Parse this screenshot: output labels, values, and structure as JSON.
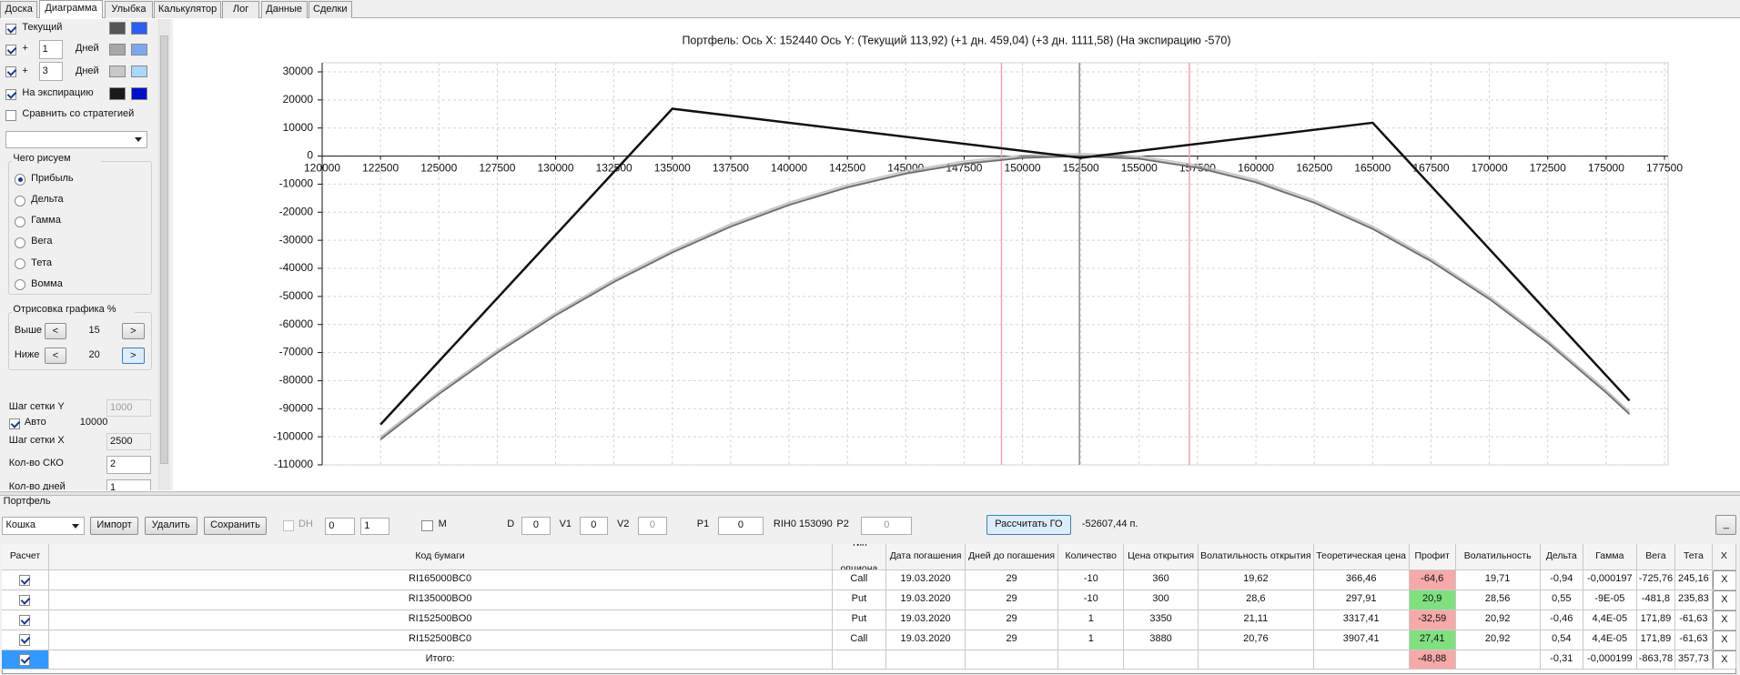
{
  "tabs": [
    "Доска",
    "Диаграмма",
    "Улыбка",
    "Калькулятор",
    "Лог",
    "Данные",
    "Сделки"
  ],
  "active_tab": 1,
  "left_panel": {
    "rows": [
      {
        "label": "Текущий",
        "checked": true,
        "colors": [
          "#555555",
          "#2b5ff0"
        ]
      },
      {
        "prefix": "+",
        "days": "1",
        "unit": "Дней",
        "checked": true,
        "colors": [
          "#a8a8a8",
          "#7ea8ee"
        ]
      },
      {
        "prefix": "+",
        "days": "3",
        "unit": "Дней",
        "checked": true,
        "colors": [
          "#c8c8c8",
          "#a8d8fa"
        ]
      },
      {
        "label": "На экспирацию",
        "checked": true,
        "colors": [
          "#1a1a1a",
          "#0010c8"
        ]
      }
    ],
    "compare": {
      "label": "Сравнить со стратегией",
      "checked": false
    },
    "draw_group": {
      "title": "Чего рисуем",
      "options": [
        "Прибыль",
        "Дельта",
        "Гамма",
        "Вега",
        "Тета",
        "Вомма"
      ],
      "selected": 0
    },
    "range_group": {
      "title": "Отрисовка графика %",
      "prev": "<",
      "next": ">",
      "rows": [
        {
          "label": "Выше",
          "value": "15"
        },
        {
          "label": "Ниже",
          "value": "20"
        }
      ]
    },
    "fields": [
      {
        "label": "Шаг сетки Y",
        "value": "1000"
      },
      {
        "label": "Шаг сетки X",
        "value": "2500"
      },
      {
        "label": "Кол-во СКО",
        "value": "2"
      },
      {
        "label": "Кол-во дней",
        "value": "1"
      }
    ],
    "auto": {
      "label": "Авто",
      "value": "10000",
      "checked": true
    }
  },
  "chart": {
    "type": "line",
    "title": "Портфель:  Ось X:  152440 Ось Y:  (Текущий 113,92)  (+1 дн. 459,04)  (+3 дн. 1111,58)  (На экспирацию -570)",
    "xlim": [
      120000,
      177500
    ],
    "ylim": [
      -110000,
      30000
    ],
    "xticks": [
      120000,
      122500,
      125000,
      127500,
      130000,
      132500,
      135000,
      137500,
      140000,
      142500,
      145000,
      147500,
      150000,
      152500,
      155000,
      157500,
      160000,
      162500,
      165000,
      167500,
      170000,
      172500,
      175000,
      177500
    ],
    "yticks": [
      30000,
      20000,
      10000,
      0,
      -10000,
      -20000,
      -30000,
      -40000,
      -50000,
      -60000,
      -70000,
      -80000,
      -90000,
      -100000,
      -110000
    ],
    "grid": true,
    "cursor_x": 152440,
    "cursor_color": "#8a8a8a",
    "sd_lines": [
      149100,
      157150
    ],
    "sd_color": "#f2a4ab",
    "series": [
      {
        "color": "#c4c4c4",
        "width": 1.5,
        "x": [
          122500,
          125000,
          127500,
          130000,
          132500,
          135000,
          137500,
          140000,
          142500,
          145000,
          147500,
          150000,
          152500,
          155000,
          157500,
          160000,
          162500,
          165000,
          167500,
          170000,
          172500,
          175000,
          176000
        ],
        "values": [
          -100000,
          -83850,
          -69100,
          -55800,
          -43900,
          -33400,
          -24200,
          -16500,
          -10200,
          -5300,
          -1800,
          300,
          900,
          0,
          -3200,
          -8400,
          -15700,
          -25000,
          -36500,
          -50000,
          -65600,
          -83300,
          -91000
        ]
      },
      {
        "color": "#a4a4a4",
        "width": 1.5,
        "x": [
          122500,
          125000,
          127500,
          130000,
          132500,
          135000,
          137500,
          140000,
          142500,
          145000,
          147500,
          150000,
          152500,
          155000,
          157500,
          160000,
          162500,
          165000,
          167500,
          170000,
          172500,
          175000,
          176000
        ],
        "values": [
          -100650,
          -84500,
          -69750,
          -56450,
          -44550,
          -34050,
          -24850,
          -17150,
          -10850,
          -5950,
          -2450,
          -350,
          250,
          -650,
          -3850,
          -9050,
          -16350,
          -25650,
          -37150,
          -50650,
          -66250,
          -83950,
          -91650
        ]
      },
      {
        "color": "#6a6a6a",
        "width": 1.5,
        "x": [
          122500,
          125000,
          127500,
          130000,
          132500,
          135000,
          137500,
          140000,
          142500,
          145000,
          147500,
          150000,
          152500,
          155000,
          157500,
          160000,
          162500,
          165000,
          167500,
          170000,
          172500,
          175000,
          176000
        ],
        "values": [
          -101000,
          -84850,
          -70100,
          -56800,
          -44900,
          -34400,
          -25200,
          -17500,
          -11200,
          -6300,
          -2800,
          -700,
          -100,
          -1000,
          -4200,
          -9400,
          -16700,
          -26000,
          -37500,
          -51000,
          -66600,
          -84300,
          -92000
        ]
      },
      {
        "color": "#111111",
        "width": 2.5,
        "x": [
          122500,
          135000,
          152500,
          165000,
          176000
        ],
        "values": [
          -95630,
          16870,
          -630,
          11870,
          -87130
        ]
      }
    ]
  },
  "portfolio": {
    "title": "Портфель",
    "strategy": "Кошка",
    "buttons": [
      "Импорт",
      "Удалить",
      "Сохранить"
    ],
    "dh": "DH",
    "spin1": "0",
    "spin2": "1",
    "m": "M",
    "fields": [
      {
        "label": "D",
        "value": "0"
      },
      {
        "label": "V1",
        "value": "0"
      },
      {
        "label": "V2",
        "value": "0"
      },
      {
        "label": "P1",
        "value": "0"
      }
    ],
    "instrument": "RIH0 153090",
    "p2": {
      "label": "P2",
      "value": "0"
    },
    "calc": "Рассчитать ГО",
    "margin": "-52607,44 п.",
    "minimize": "_"
  },
  "table": {
    "columns": [
      "Расчет",
      "Код бумаги",
      "Тип опциона",
      "Дата погашения",
      "Дней до погашения",
      "Количество",
      "Цена открытия",
      "Волатильность открытия",
      "Теоретическая цена",
      "Профит",
      "Волатильность",
      "Дельта",
      "Гамма",
      "Вега",
      "Тета",
      "X"
    ],
    "rows": [
      {
        "checked": true,
        "profit_color": "#f6a9a9",
        "cells": [
          "RI165000BC0",
          "Call",
          "19.03.2020",
          "29",
          "-10",
          "360",
          "19,62",
          "366,46",
          "-64,6",
          "19,71",
          "-0,94",
          "-0,000197",
          "-725,76",
          "245,16",
          "X"
        ]
      },
      {
        "checked": true,
        "profit_color": "#80e080",
        "cells": [
          "RI135000BO0",
          "Put",
          "19.03.2020",
          "29",
          "-10",
          "300",
          "28,6",
          "297,91",
          "20,9",
          "28,56",
          "0,55",
          "-9E-05",
          "-481,8",
          "235,83",
          "X"
        ]
      },
      {
        "checked": true,
        "profit_color": "#f6a9a9",
        "cells": [
          "RI152500BO0",
          "Put",
          "19.03.2020",
          "29",
          "1",
          "3350",
          "21,11",
          "3317,41",
          "-32,59",
          "20,92",
          "-0,46",
          "4,4E-05",
          "171,89",
          "-61,63",
          "X"
        ]
      },
      {
        "checked": true,
        "profit_color": "#80e080",
        "cells": [
          "RI152500BC0",
          "Call",
          "19.03.2020",
          "29",
          "1",
          "3880",
          "20,76",
          "3907,41",
          "27,41",
          "20,92",
          "0,54",
          "4,4E-05",
          "171,89",
          "-61,63",
          "X"
        ]
      }
    ],
    "total": {
      "checked": true,
      "label": "Итого:",
      "profit": "-48,88",
      "profit_color": "#f6a9a9",
      "delta": "-0,31",
      "gamma": "-0,000199",
      "vega": "-863,78",
      "theta": "357,73",
      "close": "X"
    }
  }
}
